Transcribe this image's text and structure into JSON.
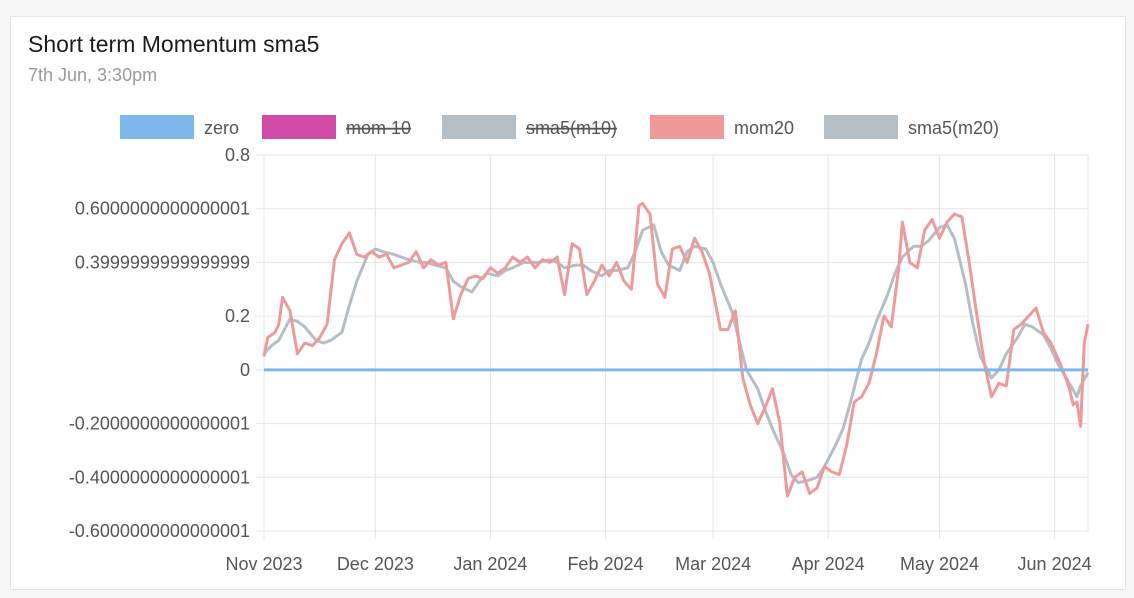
{
  "card": {
    "title": "Short term Momentum sma5",
    "subtitle": "7th Jun, 3:30pm"
  },
  "chart_data": {
    "type": "line",
    "xlabel": "",
    "ylabel": "",
    "ylim": [
      -0.6,
      0.8
    ],
    "y_ticks": [
      {
        "v": 0.8,
        "label": "0.8"
      },
      {
        "v": 0.6,
        "label": "0.6000000000000001"
      },
      {
        "v": 0.4,
        "label": "0.3999999999999999"
      },
      {
        "v": 0.2,
        "label": "0.2"
      },
      {
        "v": 0.0,
        "label": "0"
      },
      {
        "v": -0.2,
        "label": "-0.2000000000000001"
      },
      {
        "v": -0.4,
        "label": "-0.4000000000000001"
      },
      {
        "v": -0.6,
        "label": "-0.6000000000000001"
      }
    ],
    "x_domain": [
      "2023-11-01",
      "2024-06-10"
    ],
    "x_ticks": [
      {
        "date": "2023-11-01",
        "label": "Nov 2023"
      },
      {
        "date": "2023-12-01",
        "label": "Dec 2023"
      },
      {
        "date": "2024-01-01",
        "label": "Jan 2024"
      },
      {
        "date": "2024-02-01",
        "label": "Feb 2024"
      },
      {
        "date": "2024-03-01",
        "label": "Mar 2024"
      },
      {
        "date": "2024-04-01",
        "label": "Apr 2024"
      },
      {
        "date": "2024-05-01",
        "label": "May 2024"
      },
      {
        "date": "2024-06-01",
        "label": "Jun 2024"
      }
    ],
    "grid": true,
    "legend_position": "top-center",
    "legend": [
      {
        "label": "zero",
        "color": "#7eb8ea",
        "hidden": false
      },
      {
        "label": "mom 10",
        "color": "#d24ba8",
        "hidden": true
      },
      {
        "label": "sma5(m10)",
        "color": "#b4bec6",
        "hidden": true
      },
      {
        "label": "mom20",
        "color": "#ee9a9a",
        "hidden": false
      },
      {
        "label": "sma5(m20)",
        "color": "#b4bec6",
        "hidden": false
      }
    ],
    "series": [
      {
        "name": "zero",
        "color": "#7eb8ea",
        "points": [
          [
            "2023-11-01",
            0
          ],
          [
            "2024-06-10",
            0
          ]
        ]
      },
      {
        "name": "sma5(m20)",
        "color": "#b4bec6",
        "points": [
          [
            "2023-11-01",
            0.06
          ],
          [
            "2023-11-03",
            0.09
          ],
          [
            "2023-11-05",
            0.11
          ],
          [
            "2023-11-08",
            0.19
          ],
          [
            "2023-11-10",
            0.18
          ],
          [
            "2023-11-12",
            0.16
          ],
          [
            "2023-11-15",
            0.11
          ],
          [
            "2023-11-17",
            0.1
          ],
          [
            "2023-11-19",
            0.11
          ],
          [
            "2023-11-22",
            0.14
          ],
          [
            "2023-11-24",
            0.24
          ],
          [
            "2023-11-26",
            0.33
          ],
          [
            "2023-11-29",
            0.43
          ],
          [
            "2023-12-01",
            0.45
          ],
          [
            "2023-12-03",
            0.44
          ],
          [
            "2023-12-06",
            0.43
          ],
          [
            "2023-12-08",
            0.42
          ],
          [
            "2023-12-10",
            0.41
          ],
          [
            "2023-12-13",
            0.4
          ],
          [
            "2023-12-15",
            0.4
          ],
          [
            "2023-12-17",
            0.39
          ],
          [
            "2023-12-20",
            0.38
          ],
          [
            "2023-12-22",
            0.33
          ],
          [
            "2023-12-24",
            0.31
          ],
          [
            "2023-12-27",
            0.29
          ],
          [
            "2023-12-29",
            0.33
          ],
          [
            "2023-12-31",
            0.36
          ],
          [
            "2024-01-03",
            0.35
          ],
          [
            "2024-01-05",
            0.37
          ],
          [
            "2024-01-07",
            0.38
          ],
          [
            "2024-01-10",
            0.4
          ],
          [
            "2024-01-12",
            0.4
          ],
          [
            "2024-01-14",
            0.4
          ],
          [
            "2024-01-17",
            0.41
          ],
          [
            "2024-01-19",
            0.4
          ],
          [
            "2024-01-21",
            0.38
          ],
          [
            "2024-01-24",
            0.39
          ],
          [
            "2024-01-26",
            0.39
          ],
          [
            "2024-01-28",
            0.37
          ],
          [
            "2024-01-31",
            0.35
          ],
          [
            "2024-02-02",
            0.37
          ],
          [
            "2024-02-04",
            0.37
          ],
          [
            "2024-02-07",
            0.38
          ],
          [
            "2024-02-09",
            0.44
          ],
          [
            "2024-02-11",
            0.52
          ],
          [
            "2024-02-14",
            0.54
          ],
          [
            "2024-02-16",
            0.44
          ],
          [
            "2024-02-18",
            0.39
          ],
          [
            "2024-02-21",
            0.37
          ],
          [
            "2024-02-23",
            0.44
          ],
          [
            "2024-02-25",
            0.46
          ],
          [
            "2024-02-28",
            0.45
          ],
          [
            "2024-03-01",
            0.4
          ],
          [
            "2024-03-03",
            0.32
          ],
          [
            "2024-03-06",
            0.22
          ],
          [
            "2024-03-08",
            0.11
          ],
          [
            "2024-03-10",
            0.0
          ],
          [
            "2024-03-13",
            -0.07
          ],
          [
            "2024-03-15",
            -0.15
          ],
          [
            "2024-03-17",
            -0.22
          ],
          [
            "2024-03-20",
            -0.31
          ],
          [
            "2024-03-22",
            -0.39
          ],
          [
            "2024-03-24",
            -0.42
          ],
          [
            "2024-03-27",
            -0.41
          ],
          [
            "2024-03-29",
            -0.4
          ],
          [
            "2024-03-31",
            -0.36
          ],
          [
            "2024-04-03",
            -0.28
          ],
          [
            "2024-04-05",
            -0.22
          ],
          [
            "2024-04-07",
            -0.12
          ],
          [
            "2024-04-10",
            0.04
          ],
          [
            "2024-04-12",
            0.1
          ],
          [
            "2024-04-14",
            0.18
          ],
          [
            "2024-04-17",
            0.28
          ],
          [
            "2024-04-19",
            0.36
          ],
          [
            "2024-04-21",
            0.42
          ],
          [
            "2024-04-24",
            0.46
          ],
          [
            "2024-04-26",
            0.46
          ],
          [
            "2024-04-28",
            0.48
          ],
          [
            "2024-05-01",
            0.53
          ],
          [
            "2024-05-03",
            0.54
          ],
          [
            "2024-05-05",
            0.49
          ],
          [
            "2024-05-08",
            0.32
          ],
          [
            "2024-05-10",
            0.17
          ],
          [
            "2024-05-12",
            0.05
          ],
          [
            "2024-05-15",
            -0.03
          ],
          [
            "2024-05-17",
            0.0
          ],
          [
            "2024-05-19",
            0.06
          ],
          [
            "2024-05-22",
            0.12
          ],
          [
            "2024-05-24",
            0.17
          ],
          [
            "2024-05-26",
            0.16
          ],
          [
            "2024-05-29",
            0.13
          ],
          [
            "2024-05-31",
            0.08
          ],
          [
            "2024-06-02",
            0.02
          ],
          [
            "2024-06-05",
            -0.05
          ],
          [
            "2024-06-07",
            -0.1
          ],
          [
            "2024-06-08",
            -0.06
          ],
          [
            "2024-06-10",
            -0.01
          ]
        ]
      },
      {
        "name": "mom20",
        "color": "#ee9a9a",
        "points": [
          [
            "2023-11-01",
            0.05
          ],
          [
            "2023-11-02",
            0.12
          ],
          [
            "2023-11-04",
            0.14
          ],
          [
            "2023-11-05",
            0.17
          ],
          [
            "2023-11-06",
            0.27
          ],
          [
            "2023-11-08",
            0.22
          ],
          [
            "2023-11-10",
            0.06
          ],
          [
            "2023-11-12",
            0.1
          ],
          [
            "2023-11-14",
            0.09
          ],
          [
            "2023-11-16",
            0.12
          ],
          [
            "2023-11-18",
            0.17
          ],
          [
            "2023-11-20",
            0.41
          ],
          [
            "2023-11-22",
            0.47
          ],
          [
            "2023-11-24",
            0.51
          ],
          [
            "2023-11-26",
            0.43
          ],
          [
            "2023-11-28",
            0.42
          ],
          [
            "2023-11-30",
            0.44
          ],
          [
            "2023-12-02",
            0.42
          ],
          [
            "2023-12-04",
            0.43
          ],
          [
            "2023-12-06",
            0.38
          ],
          [
            "2023-12-08",
            0.39
          ],
          [
            "2023-12-10",
            0.4
          ],
          [
            "2023-12-12",
            0.44
          ],
          [
            "2023-12-14",
            0.38
          ],
          [
            "2023-12-16",
            0.41
          ],
          [
            "2023-12-18",
            0.39
          ],
          [
            "2023-12-20",
            0.4
          ],
          [
            "2023-12-22",
            0.19
          ],
          [
            "2023-12-24",
            0.28
          ],
          [
            "2023-12-26",
            0.34
          ],
          [
            "2023-12-28",
            0.35
          ],
          [
            "2023-12-30",
            0.34
          ],
          [
            "2024-01-01",
            0.38
          ],
          [
            "2024-01-03",
            0.36
          ],
          [
            "2024-01-05",
            0.38
          ],
          [
            "2024-01-07",
            0.42
          ],
          [
            "2024-01-09",
            0.4
          ],
          [
            "2024-01-11",
            0.42
          ],
          [
            "2024-01-13",
            0.38
          ],
          [
            "2024-01-15",
            0.41
          ],
          [
            "2024-01-17",
            0.4
          ],
          [
            "2024-01-19",
            0.42
          ],
          [
            "2024-01-21",
            0.28
          ],
          [
            "2024-01-23",
            0.47
          ],
          [
            "2024-01-25",
            0.45
          ],
          [
            "2024-01-27",
            0.28
          ],
          [
            "2024-01-29",
            0.33
          ],
          [
            "2024-01-31",
            0.39
          ],
          [
            "2024-02-02",
            0.35
          ],
          [
            "2024-02-04",
            0.4
          ],
          [
            "2024-02-06",
            0.33
          ],
          [
            "2024-02-08",
            0.3
          ],
          [
            "2024-02-10",
            0.61
          ],
          [
            "2024-02-11",
            0.62
          ],
          [
            "2024-02-13",
            0.58
          ],
          [
            "2024-02-15",
            0.32
          ],
          [
            "2024-02-17",
            0.27
          ],
          [
            "2024-02-19",
            0.45
          ],
          [
            "2024-02-21",
            0.46
          ],
          [
            "2024-02-23",
            0.4
          ],
          [
            "2024-02-25",
            0.49
          ],
          [
            "2024-02-27",
            0.44
          ],
          [
            "2024-02-29",
            0.36
          ],
          [
            "2024-03-01",
            0.29
          ],
          [
            "2024-03-03",
            0.15
          ],
          [
            "2024-03-05",
            0.15
          ],
          [
            "2024-03-07",
            0.22
          ],
          [
            "2024-03-09",
            -0.03
          ],
          [
            "2024-03-11",
            -0.13
          ],
          [
            "2024-03-13",
            -0.2
          ],
          [
            "2024-03-15",
            -0.14
          ],
          [
            "2024-03-17",
            -0.07
          ],
          [
            "2024-03-19",
            -0.2
          ],
          [
            "2024-03-21",
            -0.47
          ],
          [
            "2024-03-23",
            -0.4
          ],
          [
            "2024-03-25",
            -0.38
          ],
          [
            "2024-03-27",
            -0.46
          ],
          [
            "2024-03-29",
            -0.44
          ],
          [
            "2024-03-31",
            -0.36
          ],
          [
            "2024-04-02",
            -0.38
          ],
          [
            "2024-04-04",
            -0.39
          ],
          [
            "2024-04-06",
            -0.28
          ],
          [
            "2024-04-08",
            -0.12
          ],
          [
            "2024-04-10",
            -0.1
          ],
          [
            "2024-04-12",
            -0.05
          ],
          [
            "2024-04-14",
            0.06
          ],
          [
            "2024-04-16",
            0.2
          ],
          [
            "2024-04-18",
            0.16
          ],
          [
            "2024-04-20",
            0.38
          ],
          [
            "2024-04-21",
            0.55
          ],
          [
            "2024-04-23",
            0.4
          ],
          [
            "2024-04-25",
            0.38
          ],
          [
            "2024-04-27",
            0.52
          ],
          [
            "2024-04-29",
            0.56
          ],
          [
            "2024-05-01",
            0.49
          ],
          [
            "2024-05-03",
            0.55
          ],
          [
            "2024-05-05",
            0.58
          ],
          [
            "2024-05-07",
            0.57
          ],
          [
            "2024-05-09",
            0.4
          ],
          [
            "2024-05-11",
            0.21
          ],
          [
            "2024-05-13",
            0.03
          ],
          [
            "2024-05-15",
            -0.1
          ],
          [
            "2024-05-17",
            -0.05
          ],
          [
            "2024-05-19",
            -0.06
          ],
          [
            "2024-05-21",
            0.15
          ],
          [
            "2024-05-23",
            0.17
          ],
          [
            "2024-05-25",
            0.2
          ],
          [
            "2024-05-27",
            0.23
          ],
          [
            "2024-05-29",
            0.14
          ],
          [
            "2024-05-31",
            0.1
          ],
          [
            "2024-06-02",
            0.04
          ],
          [
            "2024-06-04",
            -0.03
          ],
          [
            "2024-06-05",
            -0.07
          ],
          [
            "2024-06-06",
            -0.13
          ],
          [
            "2024-06-07",
            -0.12
          ],
          [
            "2024-06-08",
            -0.21
          ],
          [
            "2024-06-09",
            0.1
          ],
          [
            "2024-06-10",
            0.17
          ]
        ]
      }
    ]
  }
}
